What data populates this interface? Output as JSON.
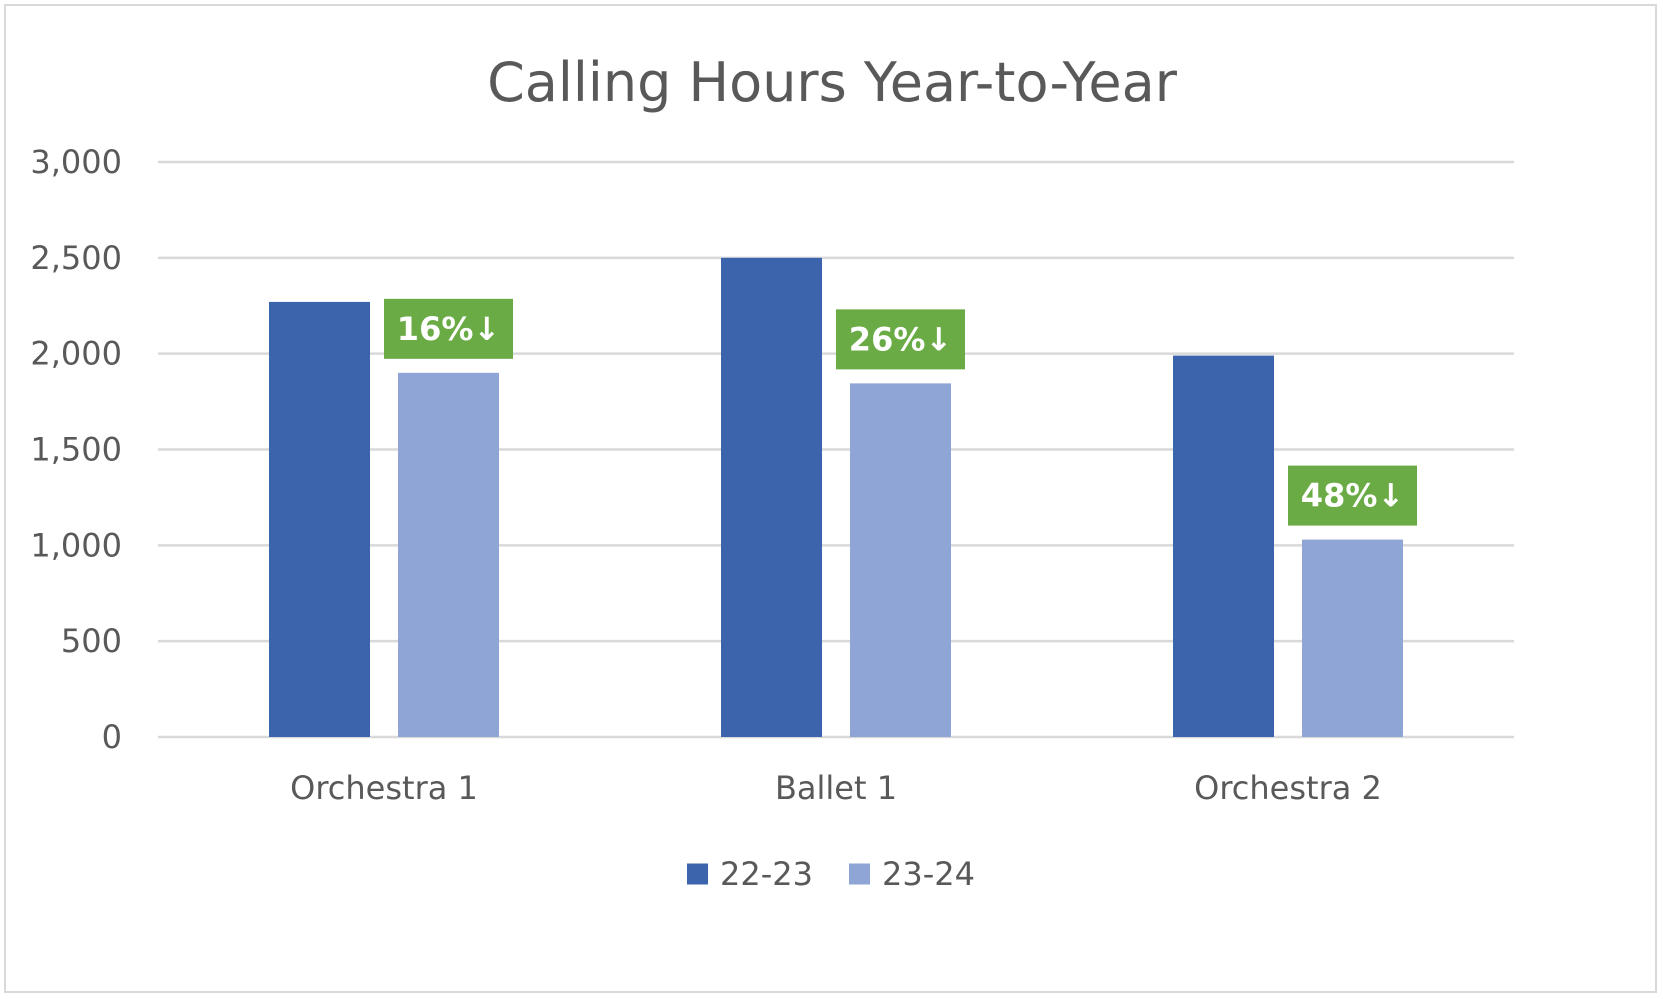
{
  "chart_data": {
    "type": "bar",
    "title": "Calling Hours Year-to-Year",
    "categories": [
      "Orchestra 1",
      "Ballet 1",
      "Orchestra 2"
    ],
    "series": [
      {
        "name": "22-23",
        "values": [
          2270,
          2500,
          1990
        ],
        "color": "#3b64ad"
      },
      {
        "name": "23-24",
        "values": [
          1900,
          1845,
          1030
        ],
        "color": "#8fa5d6"
      }
    ],
    "annotations": [
      {
        "category": "Orchestra 1",
        "text": "16%↓"
      },
      {
        "category": "Ballet 1",
        "text": "26%↓"
      },
      {
        "category": "Orchestra 2",
        "text": "48%↓"
      }
    ],
    "annotation_color": "#6aab46",
    "ylim": [
      0,
      3000
    ],
    "yticks": [
      "0",
      "500",
      "1,000",
      "1,500",
      "2,000",
      "2,500",
      "3,000"
    ],
    "ytick_values": [
      0,
      500,
      1000,
      1500,
      2000,
      2500,
      3000
    ],
    "grid": true,
    "legend_position": "bottom",
    "xlabel": "",
    "ylabel": ""
  }
}
